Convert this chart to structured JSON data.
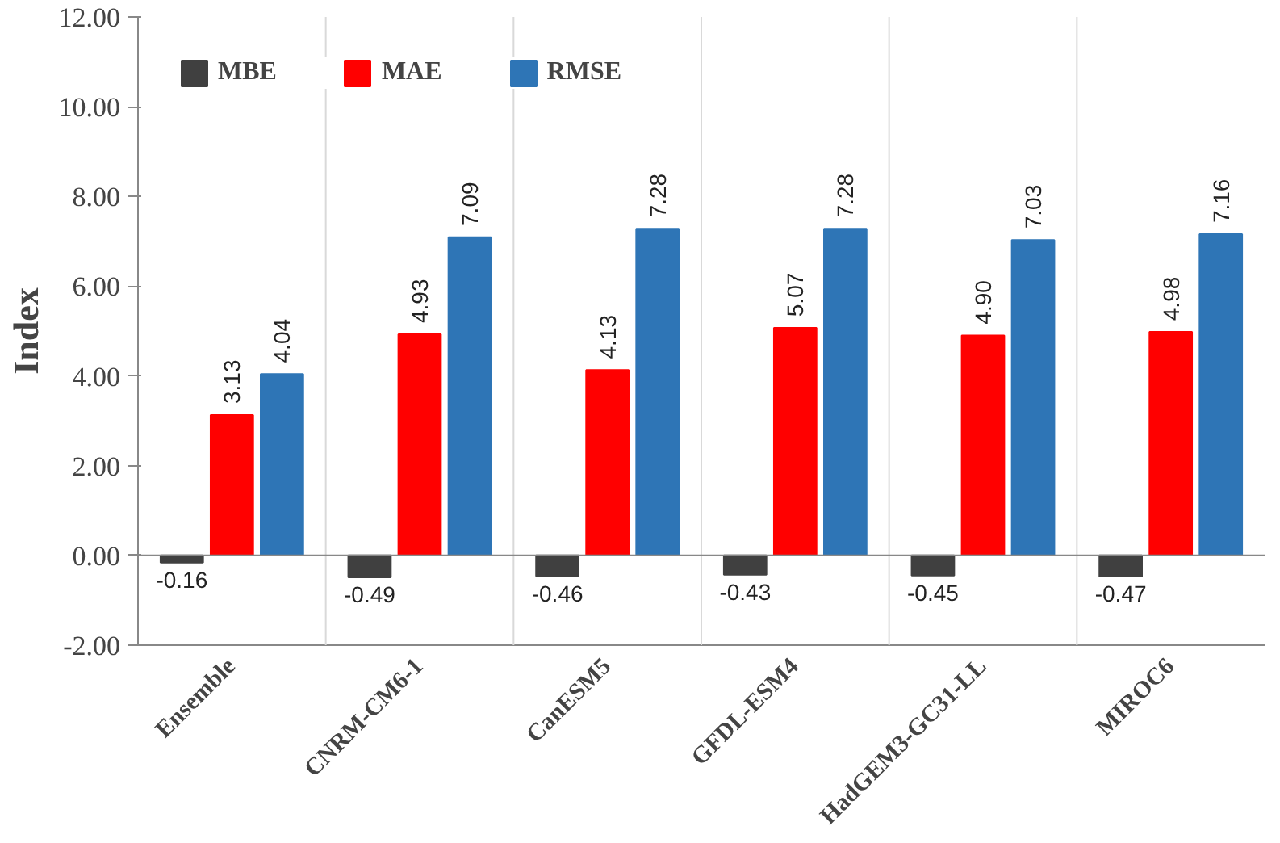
{
  "chart_data": {
    "type": "bar",
    "ylabel": "Index",
    "categories": [
      "Ensemble",
      "CNRM-CM6-1",
      "CanESM5",
      "GFDL-ESM4",
      "HadGEM3-GC31-LL",
      "MIROC6"
    ],
    "series": [
      {
        "name": "MBE",
        "color": "#404040",
        "values": [
          -0.16,
          -0.49,
          -0.46,
          -0.43,
          -0.45,
          -0.47
        ],
        "value_labels": [
          "-0.16",
          "-0.49",
          "-0.46",
          "-0.43",
          "-0.45",
          "-0.47"
        ]
      },
      {
        "name": "MAE",
        "color": "#ff0000",
        "values": [
          3.13,
          4.93,
          4.13,
          5.07,
          4.9,
          4.98
        ],
        "value_labels": [
          "3.13",
          "4.93",
          "4.13",
          "5.07",
          "4.90",
          "4.98"
        ]
      },
      {
        "name": "RMSE",
        "color": "#2e75b6",
        "values": [
          4.04,
          7.09,
          7.28,
          7.28,
          7.03,
          7.16
        ],
        "value_labels": [
          "4.04",
          "7.09",
          "7.28",
          "7.28",
          "7.03",
          "7.16"
        ]
      }
    ],
    "ylim": [
      -2,
      12
    ],
    "yticks": [
      {
        "value": -2,
        "label": "-2.00"
      },
      {
        "value": 0,
        "label": "0.00"
      },
      {
        "value": 2,
        "label": "2.00"
      },
      {
        "value": 4,
        "label": "4.00"
      },
      {
        "value": 6,
        "label": "6.00"
      },
      {
        "value": 8,
        "label": "8.00"
      },
      {
        "value": 10,
        "label": "10.00"
      },
      {
        "value": 12,
        "label": "12.00"
      }
    ],
    "grid": "x",
    "legend": "top left"
  }
}
